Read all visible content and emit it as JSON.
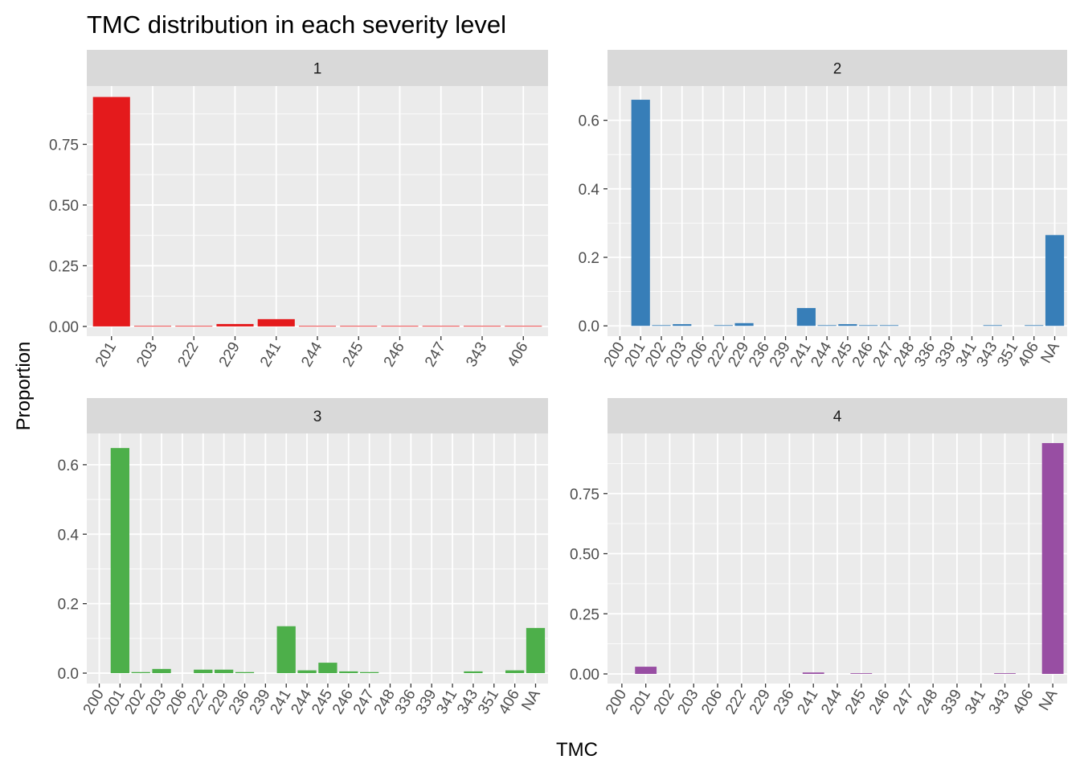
{
  "chart_data": {
    "type": "bar",
    "title": "TMC distribution in each severity level",
    "xlabel": "TMC",
    "ylabel": "Proportion",
    "grid": true,
    "legend": "none",
    "panels": [
      {
        "label": "1",
        "color": "#E41A1C",
        "categories": [
          "201",
          "203",
          "222",
          "229",
          "241",
          "244",
          "245",
          "246",
          "247",
          "343",
          "406"
        ],
        "values": [
          0.945,
          0.002,
          0.002,
          0.01,
          0.03,
          0.002,
          0.002,
          0.002,
          0.002,
          0.002,
          0.002
        ],
        "ylim": [
          -0.04,
          0.99
        ],
        "yticks": [
          0.0,
          0.25,
          0.5,
          0.75
        ],
        "ytick_labels": [
          "0.00",
          "0.25",
          "0.50",
          "0.75"
        ]
      },
      {
        "label": "2",
        "color": "#377EB8",
        "categories": [
          "200",
          "201",
          "202",
          "203",
          "206",
          "222",
          "229",
          "236",
          "239",
          "241",
          "244",
          "245",
          "246",
          "247",
          "248",
          "336",
          "339",
          "341",
          "343",
          "351",
          "406",
          "NA"
        ],
        "values": [
          0.0,
          0.66,
          0.002,
          0.005,
          0.0,
          0.002,
          0.008,
          0.0,
          0.0,
          0.052,
          0.002,
          0.005,
          0.002,
          0.002,
          0.0,
          0.0,
          0.0,
          0.0,
          0.002,
          0.0,
          0.002,
          0.265
        ],
        "ylim": [
          -0.03,
          0.7
        ],
        "yticks": [
          0.0,
          0.2,
          0.4,
          0.6
        ],
        "ytick_labels": [
          "0.0",
          "0.2",
          "0.4",
          "0.6"
        ]
      },
      {
        "label": "3",
        "color": "#4DAF4A",
        "categories": [
          "200",
          "201",
          "202",
          "203",
          "206",
          "222",
          "229",
          "236",
          "239",
          "241",
          "244",
          "245",
          "246",
          "247",
          "248",
          "336",
          "339",
          "341",
          "343",
          "351",
          "406",
          "NA"
        ],
        "values": [
          0.0,
          0.648,
          0.003,
          0.012,
          0.0,
          0.01,
          0.01,
          0.003,
          0.0,
          0.135,
          0.008,
          0.03,
          0.005,
          0.003,
          0.0,
          0.0,
          0.0,
          0.0,
          0.005,
          0.0,
          0.008,
          0.13
        ],
        "ylim": [
          -0.03,
          0.69
        ],
        "yticks": [
          0.0,
          0.2,
          0.4,
          0.6
        ],
        "ytick_labels": [
          "0.0",
          "0.2",
          "0.4",
          "0.6"
        ]
      },
      {
        "label": "4",
        "color": "#984EA3",
        "categories": [
          "200",
          "201",
          "202",
          "203",
          "206",
          "222",
          "229",
          "236",
          "241",
          "244",
          "245",
          "246",
          "247",
          "248",
          "339",
          "341",
          "343",
          "406",
          "NA"
        ],
        "values": [
          0.0,
          0.03,
          0.0,
          0.0,
          0.0,
          0.0,
          0.0,
          0.0,
          0.006,
          0.0,
          0.003,
          0.0,
          0.0,
          0.0,
          0.0,
          0.0,
          0.003,
          0.0,
          0.96
        ],
        "ylim": [
          -0.04,
          1.0
        ],
        "yticks": [
          0.0,
          0.25,
          0.5,
          0.75
        ],
        "ytick_labels": [
          "0.00",
          "0.25",
          "0.50",
          "0.75"
        ]
      }
    ]
  }
}
